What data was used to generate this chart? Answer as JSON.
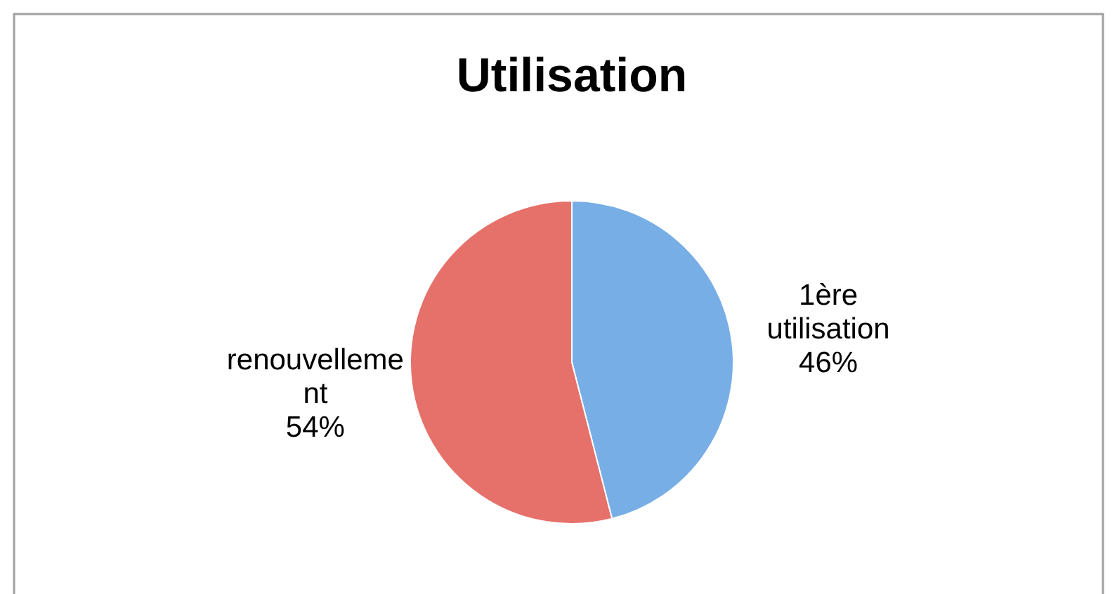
{
  "chart_data": {
    "type": "pie",
    "title": "Utilisation",
    "categories": [
      "1ère utilisation",
      "renouvellement"
    ],
    "values": [
      46,
      54
    ],
    "value_labels": [
      "46%",
      "54%"
    ],
    "colors": [
      "#78aee6",
      "#e6706a"
    ]
  }
}
